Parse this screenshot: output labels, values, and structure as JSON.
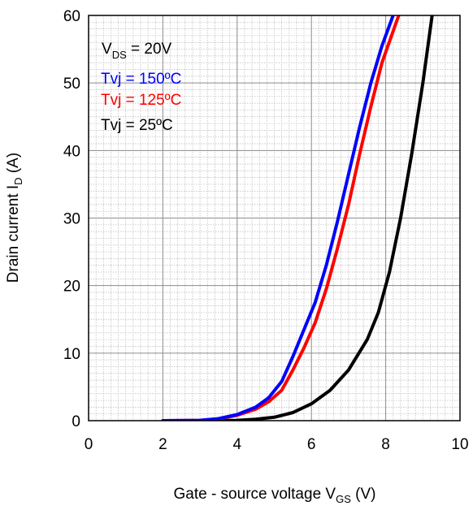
{
  "chart_data": {
    "type": "line",
    "xlabel": {
      "main": "Gate - source voltage V",
      "sub": "GS",
      "unit": " (V)"
    },
    "ylabel": {
      "main": "Drain current I",
      "sub": "D",
      "unit": " (A)"
    },
    "xlim": [
      0,
      10
    ],
    "ylim": [
      0,
      60
    ],
    "xticks": [
      "0",
      "2",
      "4",
      "6",
      "8",
      "10"
    ],
    "yticks": [
      "0",
      "10",
      "20",
      "30",
      "40",
      "50",
      "60"
    ],
    "grid": true,
    "legend_position": "top-left",
    "condition": {
      "main": "V",
      "sub": "DS",
      "rest": " = 20V"
    },
    "series": [
      {
        "name": "Tvj = 150ºC",
        "color": "#0000ff",
        "x": [
          2.0,
          3.0,
          3.5,
          4.0,
          4.5,
          4.85,
          5.2,
          5.5,
          5.8,
          6.1,
          6.4,
          6.7,
          7.0,
          7.3,
          7.6,
          7.9,
          8.2
        ],
        "y": [
          0,
          0.05,
          0.3,
          0.9,
          2.0,
          3.4,
          5.8,
          9.5,
          13.5,
          17.5,
          23.0,
          29.5,
          36.5,
          43.5,
          50.0,
          55.5,
          60.0
        ]
      },
      {
        "name": "Tvj = 125ºC",
        "color": "#ff0000",
        "x": [
          2.0,
          3.0,
          3.5,
          4.0,
          4.5,
          4.85,
          5.2,
          5.5,
          5.8,
          6.1,
          6.4,
          6.7,
          7.0,
          7.3,
          7.6,
          7.9,
          8.35
        ],
        "y": [
          0,
          0.05,
          0.25,
          0.8,
          1.7,
          2.8,
          4.5,
          7.5,
          10.8,
          14.5,
          19.5,
          25.5,
          32.0,
          39.5,
          46.5,
          53.0,
          60.0
        ]
      },
      {
        "name": "Tvj = 25ºC",
        "color": "#000000",
        "x": [
          2.0,
          3.0,
          4.0,
          4.5,
          5.0,
          5.5,
          6.0,
          6.5,
          7.0,
          7.5,
          7.8,
          8.1,
          8.4,
          8.7,
          9.0,
          9.25
        ],
        "y": [
          0,
          0,
          0.05,
          0.2,
          0.5,
          1.2,
          2.5,
          4.5,
          7.5,
          12.0,
          16.0,
          22.0,
          30.0,
          39.5,
          50.0,
          60.0
        ]
      }
    ]
  }
}
